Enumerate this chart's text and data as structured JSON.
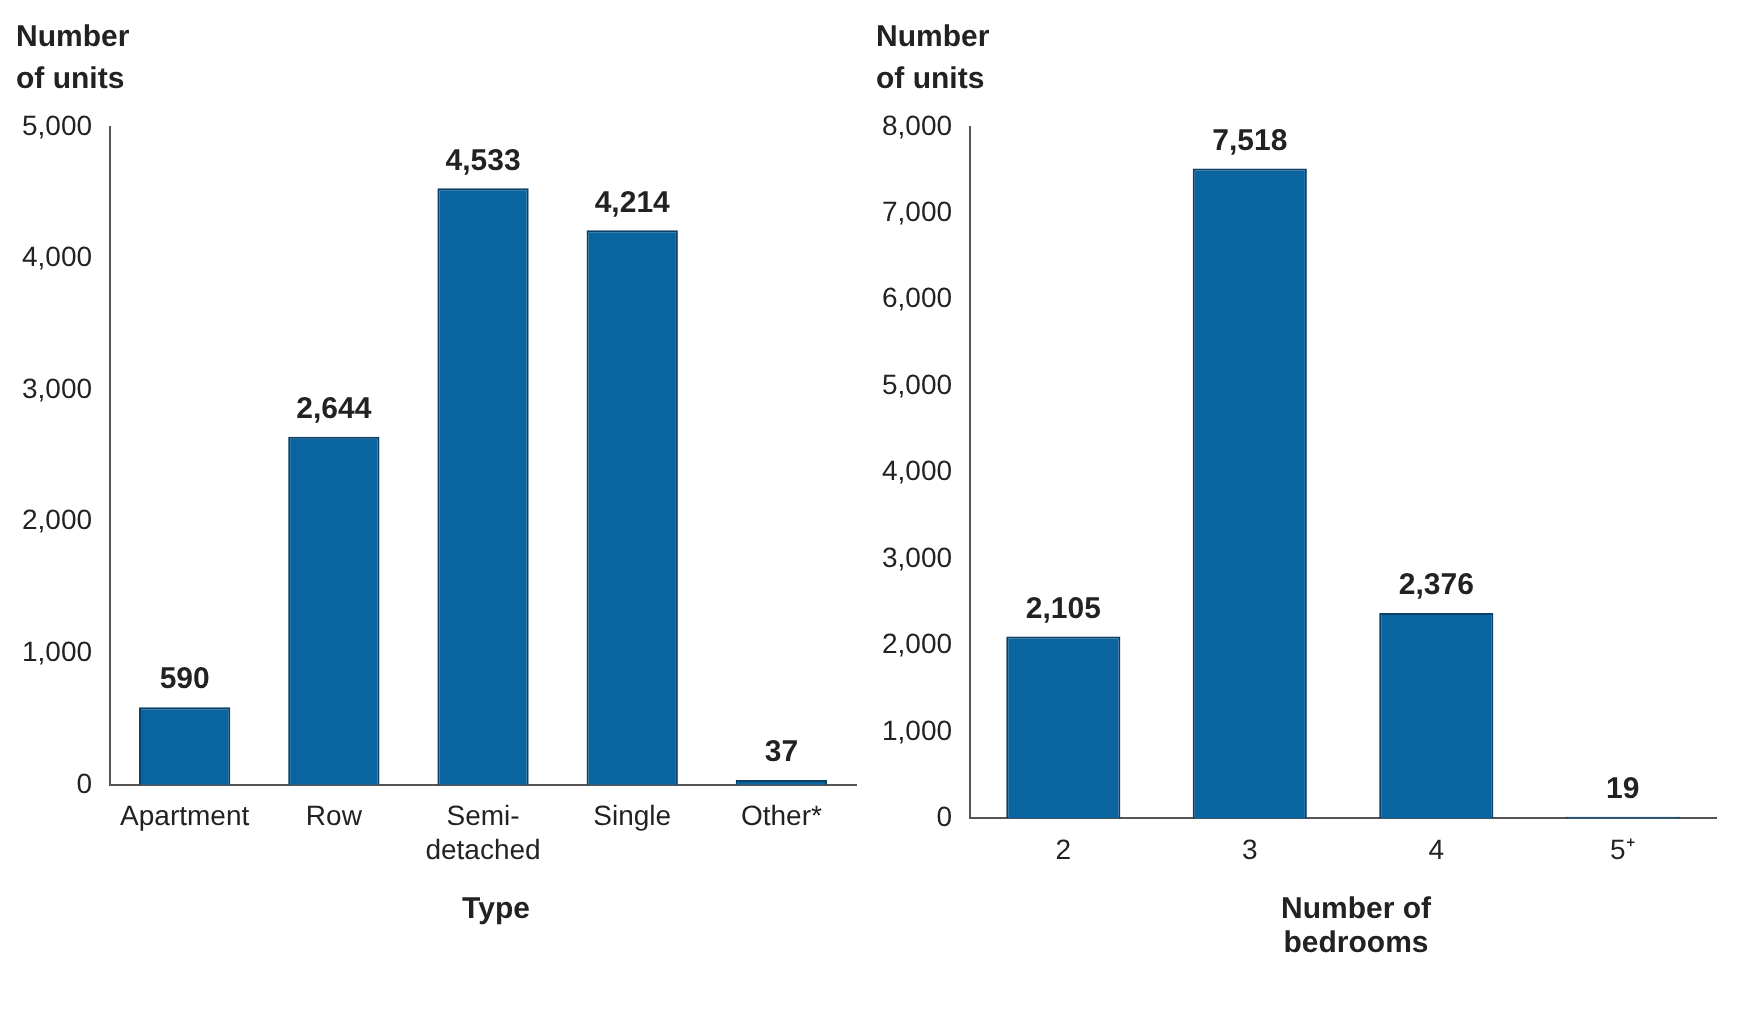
{
  "chart_data": [
    {
      "type": "bar",
      "ylabel": "Number of units",
      "xlabel": "Type",
      "categories": [
        "Apartment",
        "Row",
        "Semi-detached",
        "Single",
        "Other*"
      ],
      "values": [
        590,
        2644,
        4533,
        4214,
        37
      ],
      "value_labels": [
        "590",
        "2,644",
        "4,533",
        "4,214",
        "37"
      ],
      "color": "#0a64a0",
      "ylim": [
        0,
        5000
      ],
      "yticks": [
        0,
        {
          "value": 1000,
          "label": "1,000"
        },
        {
          "value": 2000,
          "label": "2,000"
        },
        {
          "value": 3000,
          "label": "3,000"
        },
        {
          "value": 4000,
          "label": "4,000"
        },
        {
          "value": 5000,
          "label": "5,000"
        }
      ],
      "grid": false,
      "legend": false
    },
    {
      "type": "bar",
      "ylabel": "Number of units",
      "xlabel": "Number of bedrooms",
      "categories": [
        "2",
        "3",
        "4",
        "5⁺"
      ],
      "values": [
        2105,
        7518,
        2376,
        19
      ],
      "value_labels": [
        "2,105",
        "7,518",
        "2,376",
        "19"
      ],
      "color": "#0a64a0",
      "ylim": [
        0,
        8000
      ],
      "yticks": [
        0,
        {
          "value": 1000,
          "label": "1,000"
        },
        {
          "value": 2000,
          "label": "2,000"
        },
        {
          "value": 3000,
          "label": "3,000"
        },
        {
          "value": 4000,
          "label": "4,000"
        },
        {
          "value": 5000,
          "label": "5,000"
        },
        {
          "value": 6000,
          "label": "6,000"
        },
        {
          "value": 7000,
          "label": "7,000"
        },
        {
          "value": 8000,
          "label": "8,000"
        }
      ],
      "grid": false,
      "legend": false
    }
  ]
}
